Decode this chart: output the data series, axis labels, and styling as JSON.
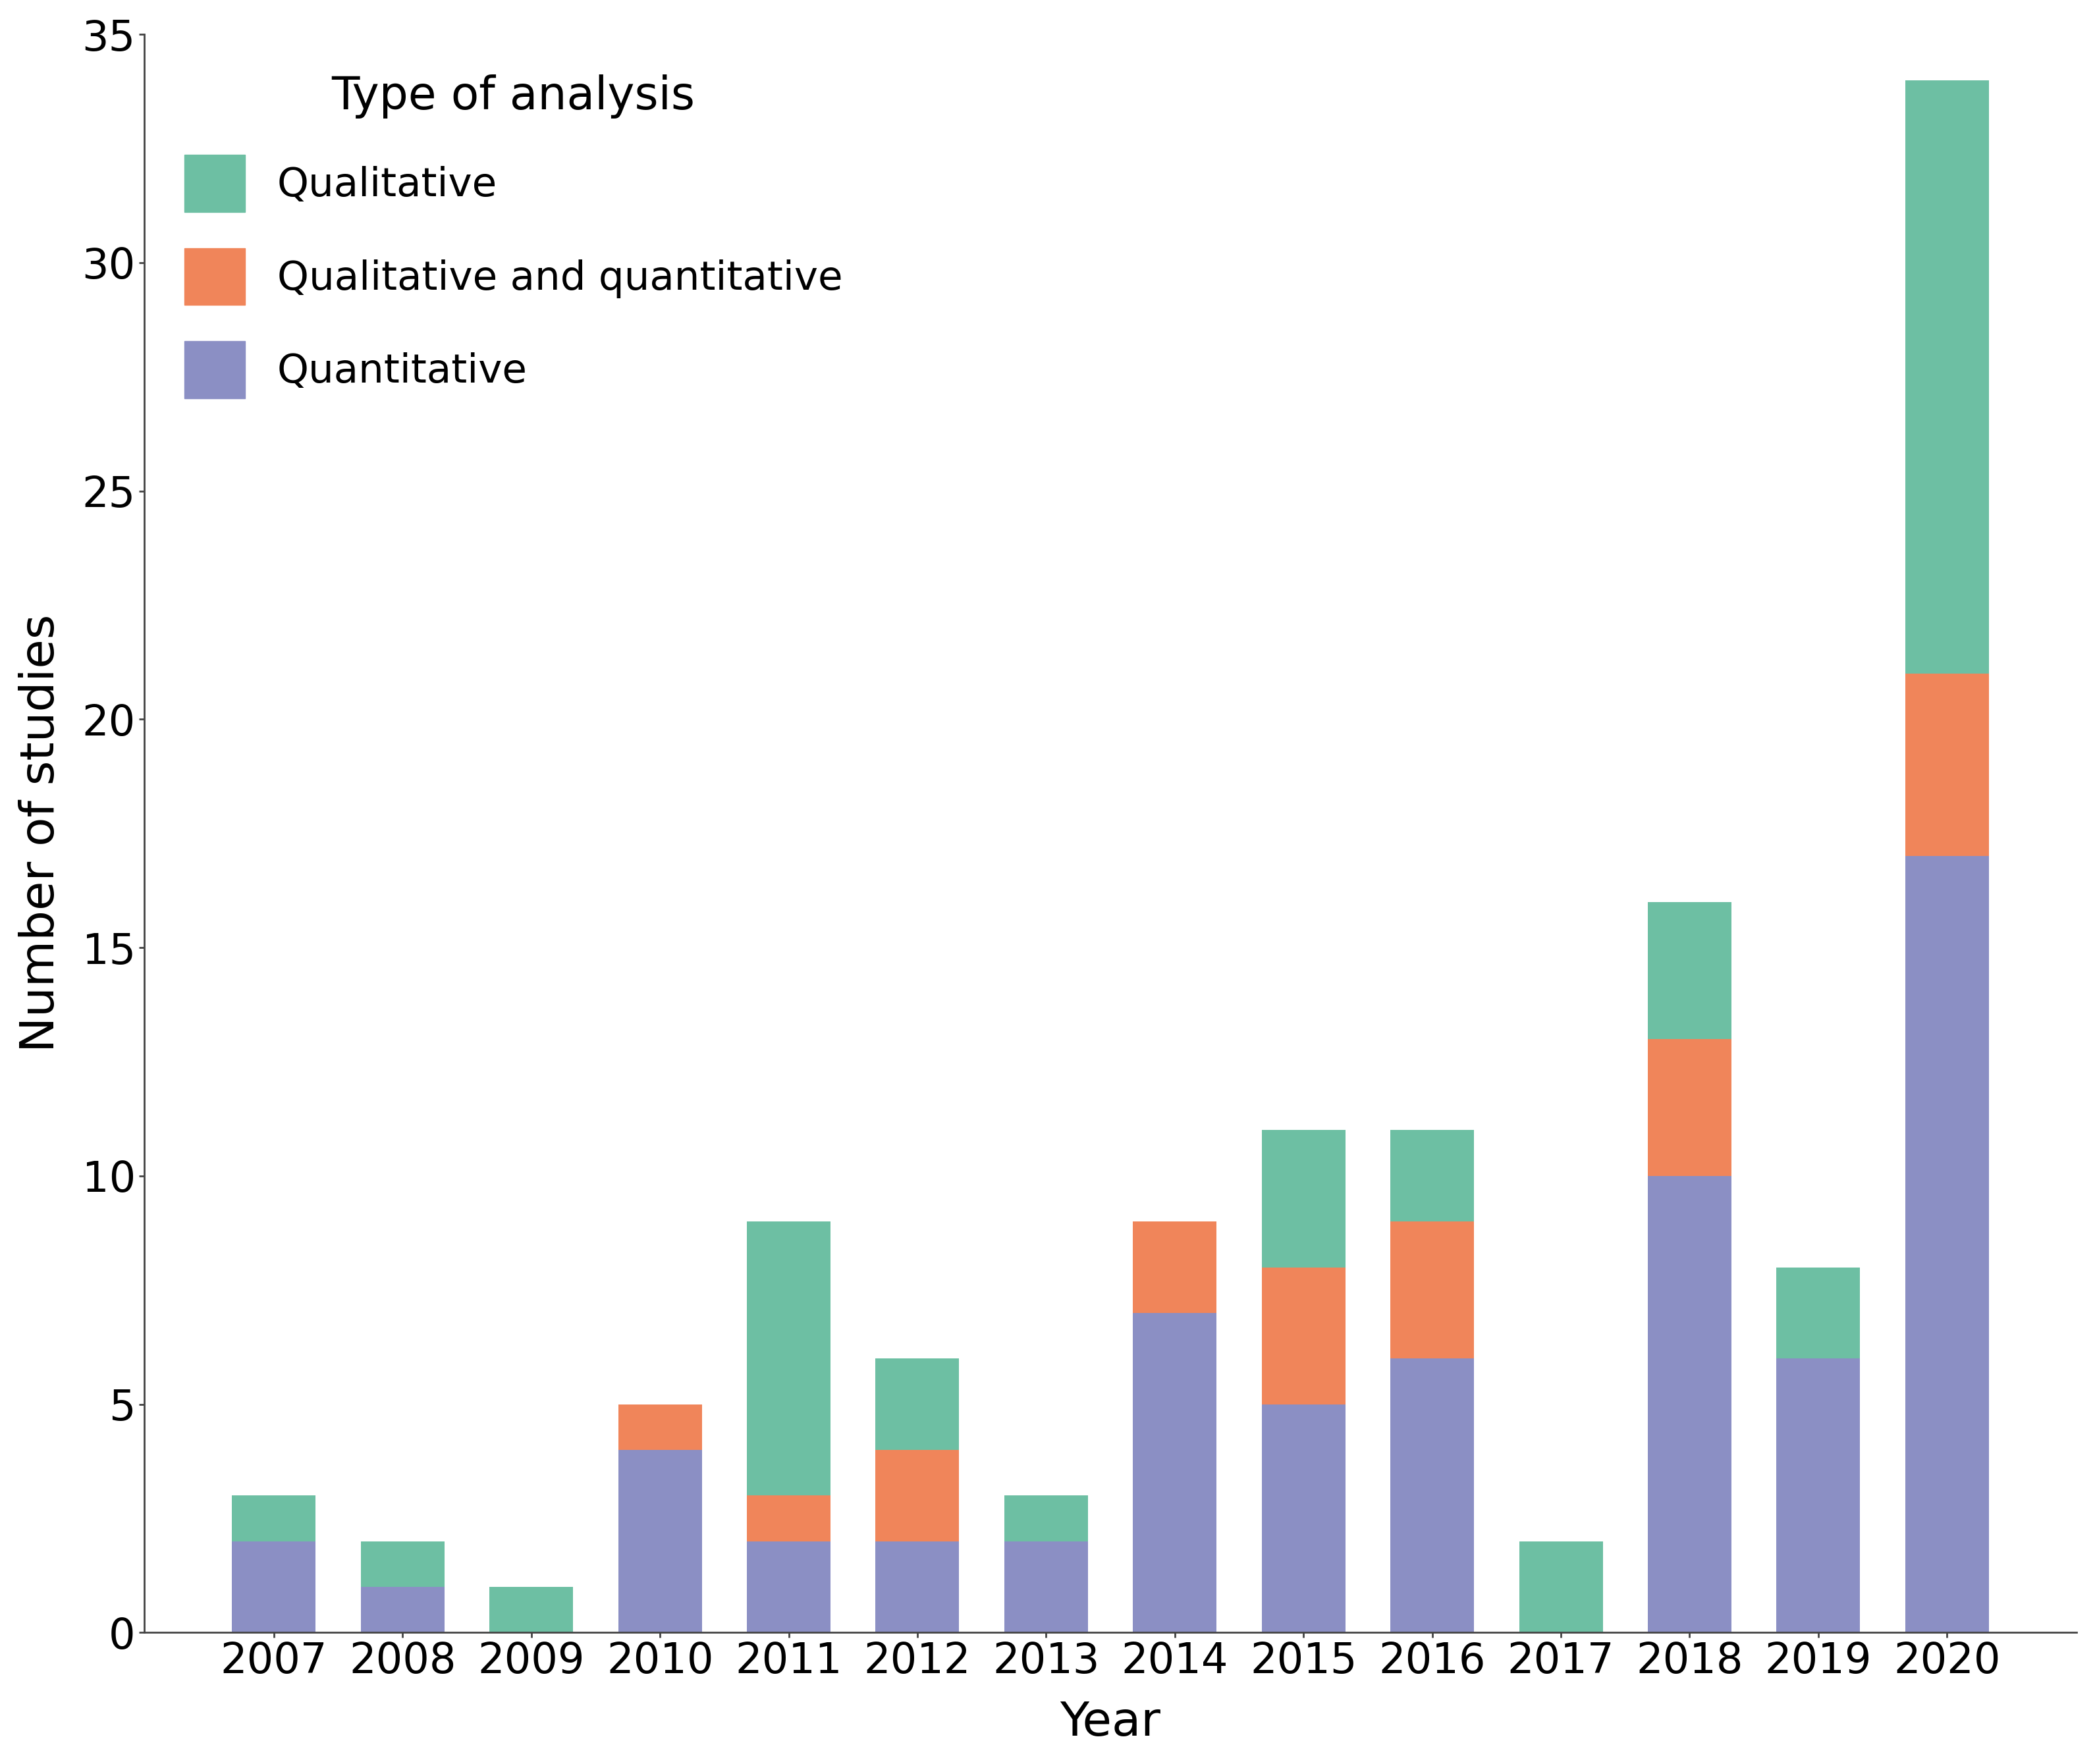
{
  "years": [
    2007,
    2008,
    2009,
    2010,
    2011,
    2012,
    2013,
    2014,
    2015,
    2016,
    2017,
    2018,
    2019,
    2020
  ],
  "quantitative": [
    2,
    1,
    0,
    4,
    2,
    2,
    2,
    7,
    5,
    6,
    0,
    10,
    6,
    17
  ],
  "qual_and_quant": [
    0,
    0,
    0,
    1,
    1,
    2,
    0,
    2,
    3,
    3,
    0,
    3,
    0,
    4
  ],
  "qualitative": [
    1,
    1,
    1,
    0,
    6,
    2,
    1,
    0,
    3,
    2,
    2,
    3,
    2,
    13
  ],
  "color_qualitative": "#6dbfa3",
  "color_qual_and_quant": "#f0855a",
  "color_quantitative": "#8b8fc4",
  "xlabel": "Year",
  "ylabel": "Number of studies",
  "legend_title": "Type of analysis",
  "legend_qualitative": "Qualitative",
  "legend_qual_quant": "Qualitative and quantitative",
  "legend_quantitative": "Quantitative",
  "ylim": [
    0,
    35
  ],
  "yticks": [
    0,
    5,
    10,
    15,
    20,
    25,
    30,
    35
  ],
  "bar_width": 0.65,
  "background_color": "#ffffff",
  "label_fontsize": 52,
  "tick_fontsize": 46,
  "legend_fontsize": 44,
  "legend_title_fontsize": 50
}
